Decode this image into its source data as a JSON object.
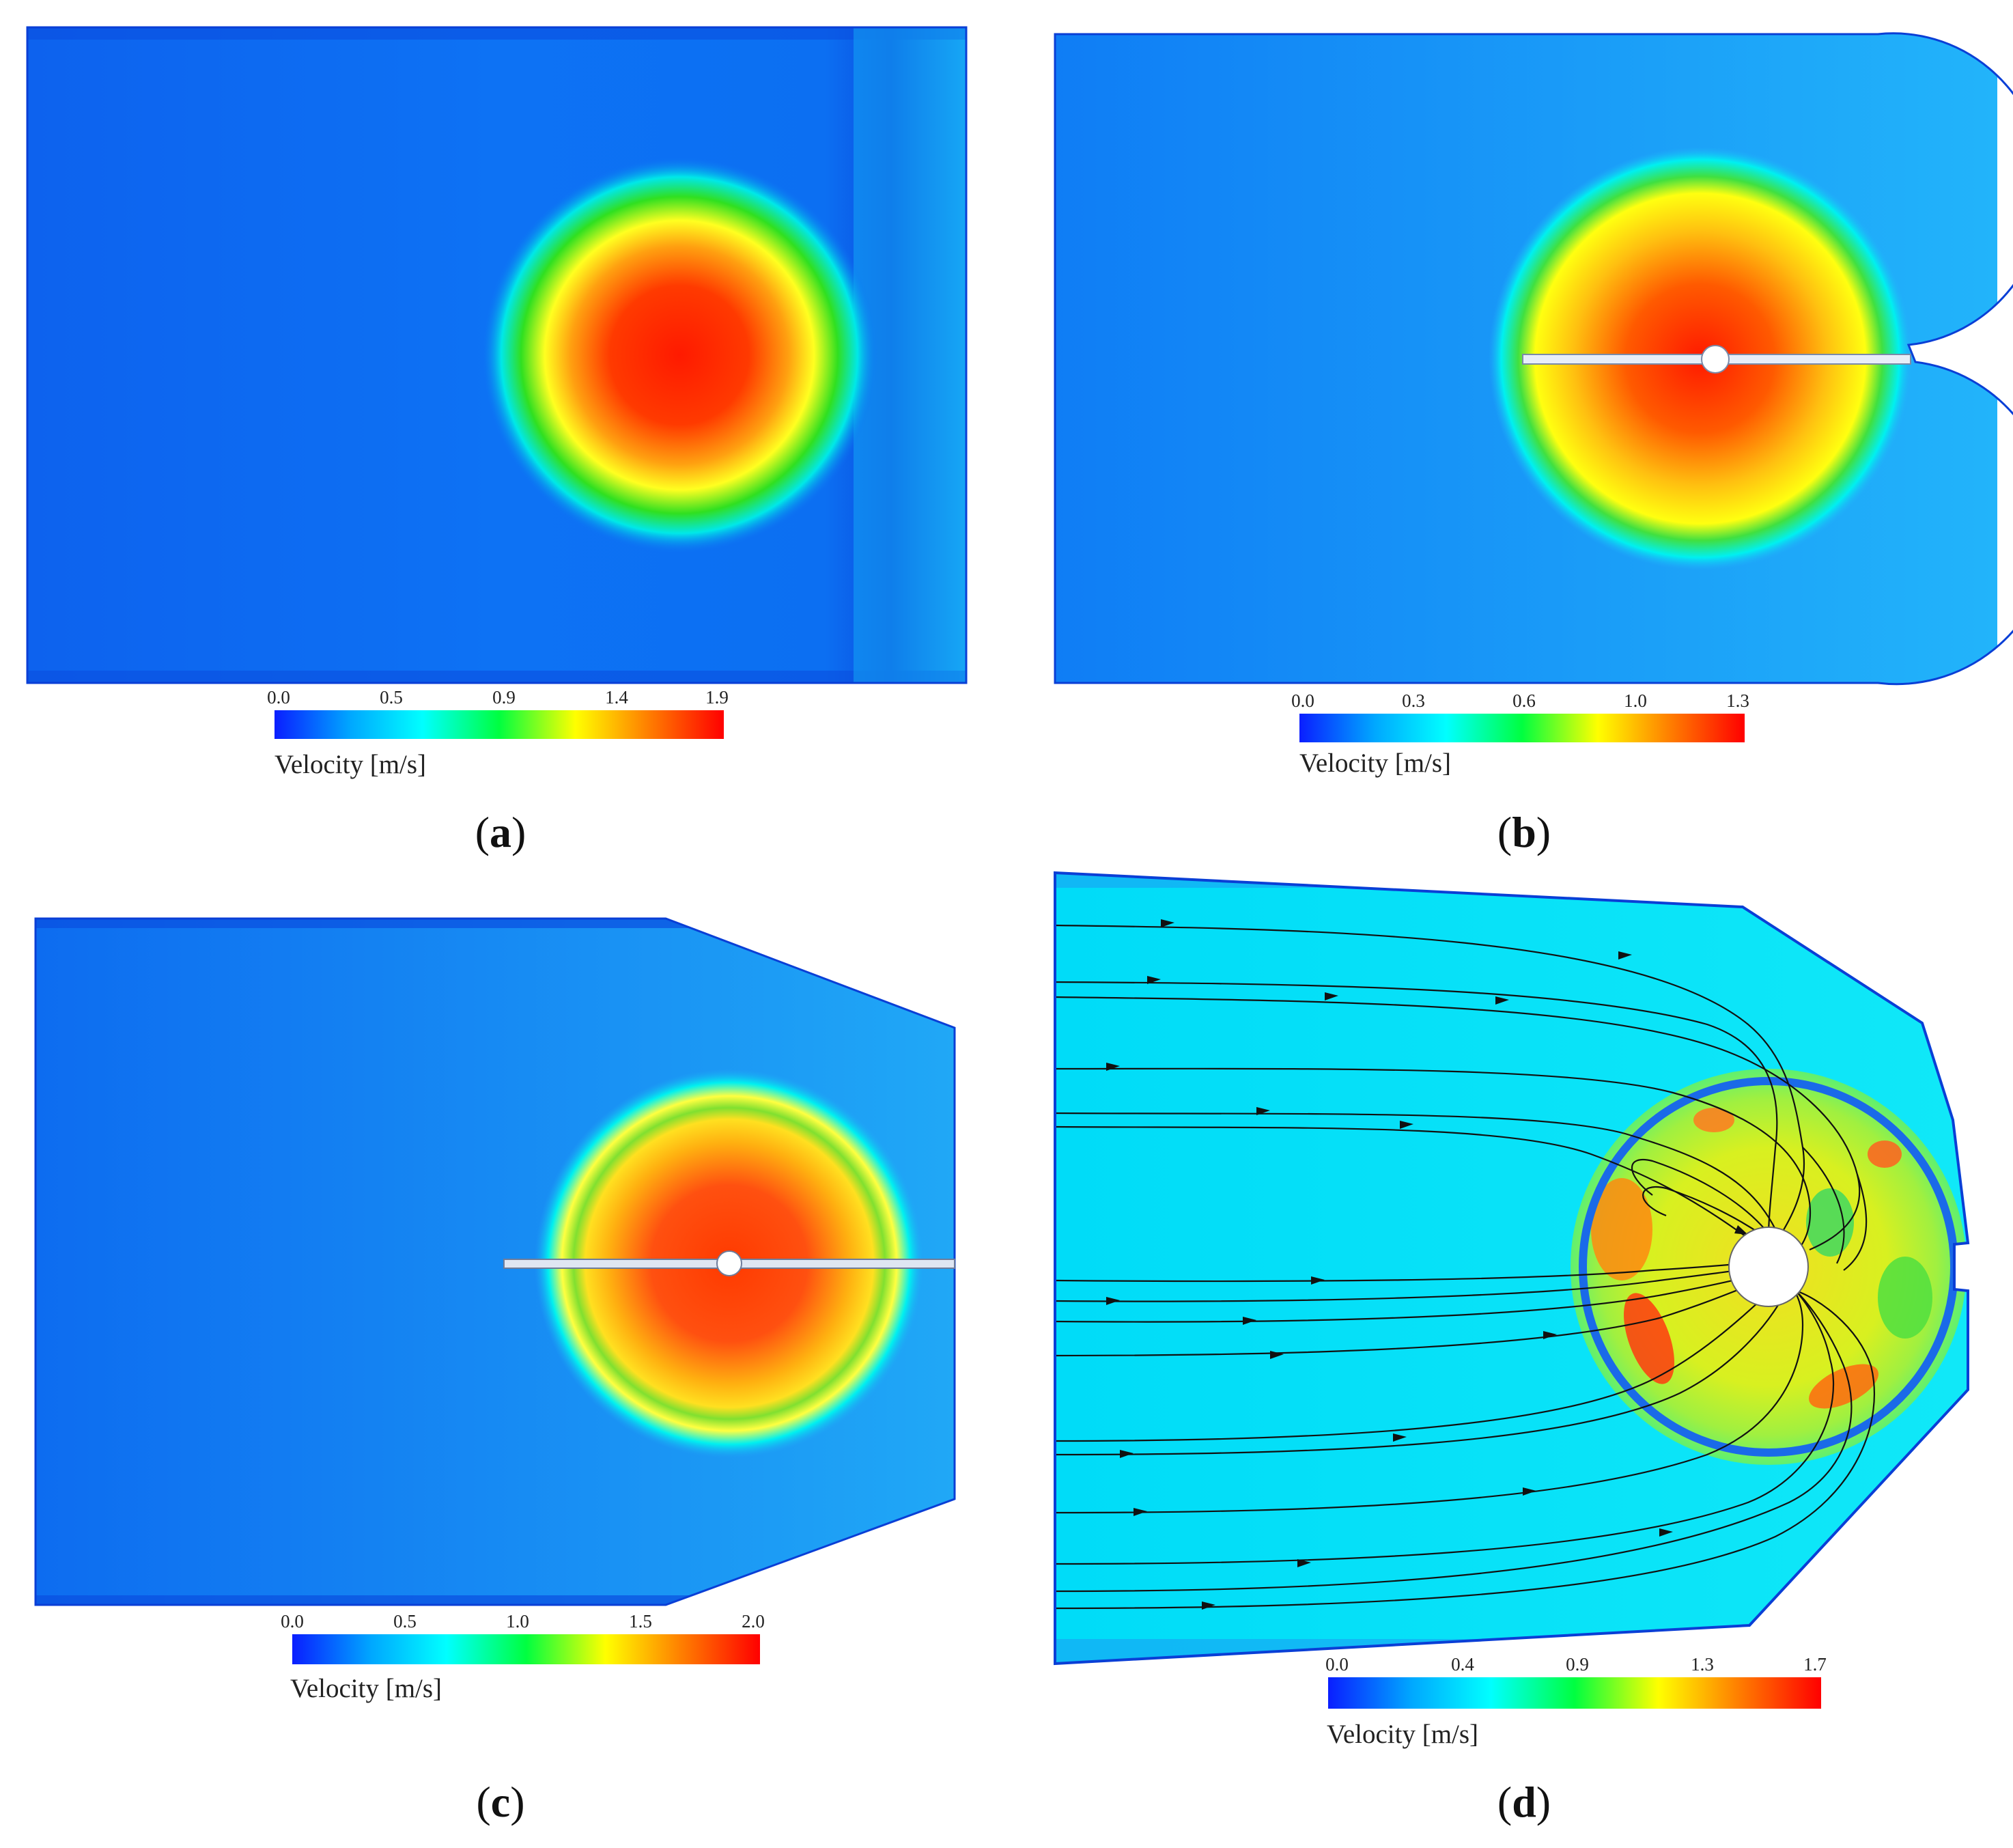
{
  "colors": {
    "base_blue": "#0d6df0",
    "edge_blue": "#0a3fd6",
    "cyan": "#00e8ff",
    "green": "#18e020",
    "yellow": "#ffff00",
    "orange": "#ff9a10",
    "red": "#ff1a00",
    "streamline": "#111111"
  },
  "colorbar_stops": [
    "#0a1eff",
    "#00a8ff",
    "#00ffff",
    "#00ff40",
    "#ffff00",
    "#ff8000",
    "#ff0000"
  ],
  "panels": [
    {
      "id": "a",
      "label_open": "(",
      "label_letter": "a",
      "label_close": ")",
      "legend_ticks": [
        "0.0",
        "0.5",
        "0.9",
        "1.4",
        "1.9"
      ],
      "legend_title": "Velocity [m/s]"
    },
    {
      "id": "b",
      "label_open": "(",
      "label_letter": "b",
      "label_close": ")",
      "legend_ticks": [
        "0.0",
        "0.3",
        "0.6",
        "1.0",
        "1.3"
      ],
      "legend_title": "Velocity [m/s]"
    },
    {
      "id": "c",
      "label_open": "(",
      "label_letter": "c",
      "label_close": ")",
      "legend_ticks": [
        "0.0",
        "0.5",
        "1.0",
        "1.5",
        "2.0"
      ],
      "legend_title": "Velocity [m/s]"
    },
    {
      "id": "d",
      "label_open": "(",
      "label_letter": "d",
      "label_close": ")",
      "legend_ticks": [
        "0.0",
        "0.4",
        "0.9",
        "1.3",
        "1.7"
      ],
      "legend_title": "Velocity [m/s]"
    }
  ]
}
